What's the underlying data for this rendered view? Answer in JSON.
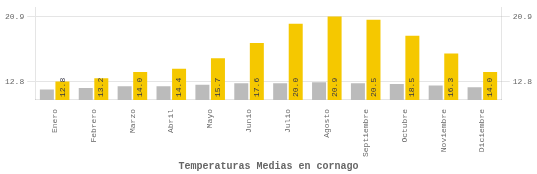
{
  "chart_data": {
    "type": "bar",
    "title": "Temperaturas Medias en cornago",
    "categories": [
      "Enero",
      "Febrero",
      "Marzo",
      "Abril",
      "Mayo",
      "Junio",
      "Julio",
      "Agosto",
      "Septiembre",
      "Octubre",
      "Noviembre",
      "Diciembre"
    ],
    "series": [
      {
        "color": "#BBBBBB",
        "values": [
          11.8,
          12.0,
          12.2,
          12.2,
          12.4,
          12.6,
          12.6,
          12.7,
          12.6,
          12.5,
          12.3,
          12.1
        ]
      },
      {
        "color": "#F5C800",
        "values": [
          12.8,
          13.2,
          14.0,
          14.4,
          15.7,
          17.6,
          20.0,
          20.9,
          20.5,
          18.5,
          16.3,
          14.0
        ],
        "value_labels": [
          "12.8",
          "13.2",
          "14.0",
          "14.4",
          "15.7",
          "17.6",
          "20.0",
          "20.9",
          "20.5",
          "18.5",
          "16.3",
          "14.0"
        ],
        "data_labels": true
      }
    ],
    "ylim": [
      10.5,
      22.0
    ],
    "yticks": [
      12.8,
      20.9
    ],
    "y2lim": [
      10.5,
      22.0
    ],
    "y2ticks": [
      12.8,
      20.9
    ],
    "grid": true
  }
}
